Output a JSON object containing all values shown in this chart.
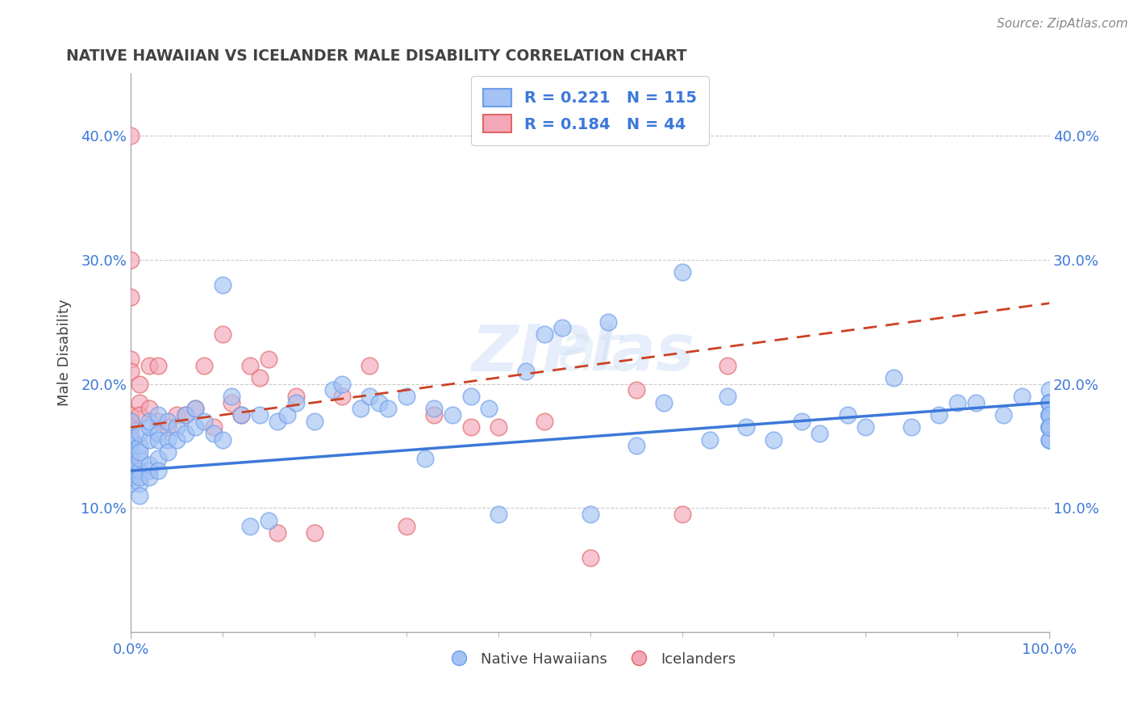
{
  "title": "NATIVE HAWAIIAN VS ICELANDER MALE DISABILITY CORRELATION CHART",
  "source": "Source: ZipAtlas.com",
  "ylabel": "Male Disability",
  "xlim": [
    0.0,
    1.0
  ],
  "ylim": [
    0.0,
    0.45
  ],
  "yticks": [
    0.0,
    0.1,
    0.2,
    0.3,
    0.4
  ],
  "ytick_labels": [
    "",
    "10.0%",
    "20.0%",
    "30.0%",
    "40.0%"
  ],
  "blue_color": "#a4c2f4",
  "pink_color": "#f4a7b9",
  "blue_edge_color": "#6d9eeb",
  "pink_edge_color": "#e06666",
  "blue_line_color": "#3c78d8",
  "pink_line_color": "#cc4125",
  "background_color": "#ffffff",
  "grid_color": "#cccccc",
  "title_color": "#434343",
  "axis_color": "#3c78d8",
  "legend_text_color": "#3c78d8",
  "blue_scatter_x": [
    0.0,
    0.0,
    0.0,
    0.0,
    0.0,
    0.0,
    0.0,
    0.0,
    0.0,
    0.0,
    0.01,
    0.01,
    0.01,
    0.01,
    0.01,
    0.01,
    0.01,
    0.01,
    0.02,
    0.02,
    0.02,
    0.02,
    0.02,
    0.02,
    0.03,
    0.03,
    0.03,
    0.03,
    0.03,
    0.04,
    0.04,
    0.04,
    0.05,
    0.05,
    0.06,
    0.06,
    0.07,
    0.07,
    0.08,
    0.09,
    0.1,
    0.1,
    0.11,
    0.12,
    0.13,
    0.14,
    0.15,
    0.16,
    0.17,
    0.18,
    0.2,
    0.22,
    0.23,
    0.25,
    0.26,
    0.27,
    0.28,
    0.3,
    0.32,
    0.33,
    0.35,
    0.37,
    0.39,
    0.4,
    0.43,
    0.45,
    0.47,
    0.5,
    0.52,
    0.55,
    0.58,
    0.6,
    0.63,
    0.65,
    0.67,
    0.7,
    0.73,
    0.75,
    0.78,
    0.8,
    0.83,
    0.85,
    0.88,
    0.9,
    0.92,
    0.95,
    0.97,
    1.0,
    1.0,
    1.0,
    1.0,
    1.0,
    1.0,
    1.0,
    1.0,
    1.0,
    1.0,
    1.0,
    1.0,
    1.0,
    1.0,
    1.0,
    1.0,
    1.0,
    1.0,
    1.0,
    1.0,
    1.0,
    1.0,
    1.0,
    1.0,
    1.0,
    1.0,
    1.0,
    1.0,
    1.0,
    1.0
  ],
  "blue_scatter_y": [
    0.14,
    0.15,
    0.12,
    0.155,
    0.13,
    0.145,
    0.135,
    0.16,
    0.17,
    0.125,
    0.12,
    0.13,
    0.14,
    0.15,
    0.16,
    0.11,
    0.125,
    0.145,
    0.13,
    0.155,
    0.165,
    0.17,
    0.135,
    0.125,
    0.14,
    0.16,
    0.175,
    0.155,
    0.13,
    0.155,
    0.17,
    0.145,
    0.165,
    0.155,
    0.175,
    0.16,
    0.18,
    0.165,
    0.17,
    0.16,
    0.28,
    0.155,
    0.19,
    0.175,
    0.085,
    0.175,
    0.09,
    0.17,
    0.175,
    0.185,
    0.17,
    0.195,
    0.2,
    0.18,
    0.19,
    0.185,
    0.18,
    0.19,
    0.14,
    0.18,
    0.175,
    0.19,
    0.18,
    0.095,
    0.21,
    0.24,
    0.245,
    0.095,
    0.25,
    0.15,
    0.185,
    0.29,
    0.155,
    0.19,
    0.165,
    0.155,
    0.17,
    0.16,
    0.175,
    0.165,
    0.205,
    0.165,
    0.175,
    0.185,
    0.185,
    0.175,
    0.19,
    0.185,
    0.175,
    0.165,
    0.155,
    0.175,
    0.165,
    0.185,
    0.175,
    0.165,
    0.175,
    0.185,
    0.195,
    0.165,
    0.185,
    0.175,
    0.165,
    0.185,
    0.175,
    0.165,
    0.155,
    0.185,
    0.175,
    0.165,
    0.185,
    0.175,
    0.165,
    0.155,
    0.185,
    0.175,
    0.165
  ],
  "pink_scatter_x": [
    0.0,
    0.0,
    0.0,
    0.0,
    0.0,
    0.0,
    0.0,
    0.0,
    0.0,
    0.0,
    0.0,
    0.01,
    0.01,
    0.01,
    0.02,
    0.02,
    0.03,
    0.03,
    0.04,
    0.05,
    0.06,
    0.07,
    0.08,
    0.09,
    0.1,
    0.11,
    0.12,
    0.13,
    0.14,
    0.15,
    0.16,
    0.18,
    0.2,
    0.23,
    0.26,
    0.3,
    0.33,
    0.37,
    0.4,
    0.45,
    0.5,
    0.55,
    0.6,
    0.65
  ],
  "pink_scatter_y": [
    0.155,
    0.165,
    0.17,
    0.175,
    0.14,
    0.4,
    0.135,
    0.3,
    0.27,
    0.22,
    0.21,
    0.185,
    0.175,
    0.2,
    0.18,
    0.215,
    0.215,
    0.17,
    0.165,
    0.175,
    0.175,
    0.18,
    0.215,
    0.165,
    0.24,
    0.185,
    0.175,
    0.215,
    0.205,
    0.22,
    0.08,
    0.19,
    0.08,
    0.19,
    0.215,
    0.085,
    0.175,
    0.165,
    0.165,
    0.17,
    0.06,
    0.195,
    0.095,
    0.215
  ],
  "watermark": "ZIPat las",
  "bottom_legend_blue": "Native Hawaiians",
  "bottom_legend_pink": "Icelanders",
  "blue_line_start_x": 0.0,
  "blue_line_start_y": 0.13,
  "blue_line_end_x": 1.0,
  "blue_line_end_y": 0.185,
  "pink_line_start_x": 0.0,
  "pink_line_start_y": 0.165,
  "pink_line_end_x": 1.0,
  "pink_line_end_y": 0.265
}
